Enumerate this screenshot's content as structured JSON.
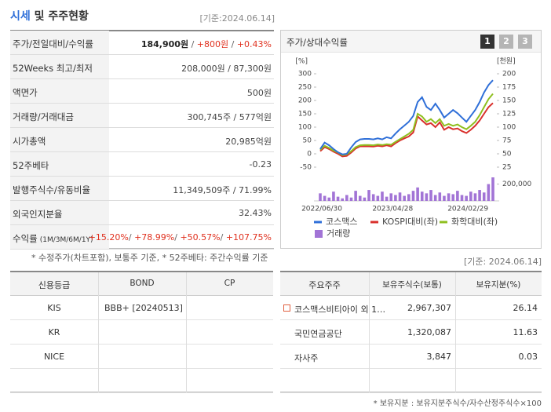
{
  "header": {
    "title_highlight": "시세",
    "title_rest": "및 주주현황",
    "date": "[기준:2024.06.14]"
  },
  "quote_table": {
    "rows": [
      {
        "label": "주가/전일대비/수익률",
        "value": [
          {
            "text": "184,900원",
            "bold": true
          },
          {
            "text": " / "
          },
          {
            "text": "+800원",
            "color": "#e0301e"
          },
          {
            "text": " / "
          },
          {
            "text": "+0.43%",
            "color": "#e0301e"
          }
        ]
      },
      {
        "label": "52Weeks 최고/최저",
        "value": [
          {
            "text": "208,000원 / 87,300원"
          }
        ]
      },
      {
        "label": "액면가",
        "value": [
          {
            "text": "500원"
          }
        ]
      },
      {
        "label": "거래량/거래대금",
        "value": [
          {
            "text": "300,745주 / 577억원"
          }
        ]
      },
      {
        "label": "시가총액",
        "value": [
          {
            "text": "20,985억원"
          }
        ]
      },
      {
        "label": "52주베타",
        "value": [
          {
            "text": "-0.23"
          }
        ]
      },
      {
        "label": "발행주식수/유동비율",
        "value": [
          {
            "text": "11,349,509주 / 71.99%"
          }
        ]
      },
      {
        "label": "외국인지분율",
        "value": [
          {
            "text": "32.43%"
          }
        ]
      },
      {
        "label": "수익률",
        "label_sub": "(1M/3M/6M/1Y)",
        "value": [
          {
            "text": "+15.20%",
            "color": "#e0301e"
          },
          {
            "text": "/ "
          },
          {
            "text": "+78.99%",
            "color": "#e0301e"
          },
          {
            "text": "/ "
          },
          {
            "text": "+50.57%",
            "color": "#e0301e"
          },
          {
            "text": "/ "
          },
          {
            "text": "+107.75%",
            "color": "#e0301e"
          }
        ]
      }
    ]
  },
  "quote_note": "* 수정주가(차트포함), 보통주 기준, * 52주베타: 주간수익률 기준",
  "chart_panel": {
    "title": "주가/상대수익률",
    "buttons": [
      "1",
      "2",
      "3"
    ],
    "chart_data": {
      "type": "line",
      "ylabel": "[%]",
      "y2label": "[천원]",
      "categories": [
        "2022/06/30",
        null,
        null,
        null,
        null,
        null,
        null,
        null,
        null,
        null,
        null,
        null,
        null,
        null,
        null,
        null,
        "2023/04/28",
        null,
        null,
        null,
        null,
        null,
        null,
        null,
        null,
        null,
        null,
        null,
        null,
        null,
        null,
        null,
        null,
        "2024/02/29",
        null,
        null,
        null,
        null,
        null,
        null
      ],
      "ylim": [
        -50,
        300
      ],
      "yticks": [
        -50,
        0,
        50,
        100,
        150,
        200,
        250,
        300
      ],
      "y2lim": [
        25,
        200
      ],
      "y2ticks": [
        25,
        50,
        75,
        100,
        125,
        150,
        175,
        200
      ],
      "volume_lim": [
        0,
        280000
      ],
      "volume_ticks": [
        {
          "value": 200000,
          "label": "200,000"
        }
      ],
      "series": [
        {
          "name": "코스맥스",
          "color": "#2f6fd8",
          "axis": "y2",
          "values": [
            59,
            71,
            66,
            59,
            53,
            49,
            50,
            62,
            72,
            77,
            78,
            78,
            77,
            79,
            77,
            81,
            79,
            88,
            96,
            103,
            110,
            121,
            147,
            156,
            138,
            132,
            144,
            132,
            118,
            125,
            132,
            126,
            118,
            110,
            121,
            132,
            147,
            165,
            179,
            188
          ]
        },
        {
          "name": "KOSPI대비(좌)",
          "color": "#d9302c",
          "values": [
            10,
            25,
            18,
            8,
            0,
            -10,
            -8,
            5,
            20,
            28,
            28,
            28,
            27,
            30,
            28,
            32,
            28,
            40,
            50,
            58,
            65,
            80,
            140,
            125,
            110,
            115,
            100,
            118,
            90,
            100,
            92,
            95,
            85,
            78,
            90,
            105,
            125,
            150,
            175,
            190
          ]
        },
        {
          "name": "화학대비(좌)",
          "color": "#8fbf1f",
          "values": [
            15,
            30,
            22,
            12,
            5,
            -5,
            -2,
            10,
            25,
            32,
            33,
            33,
            32,
            35,
            33,
            36,
            34,
            45,
            55,
            65,
            75,
            90,
            150,
            140,
            120,
            130,
            115,
            130,
            105,
            112,
            105,
            110,
            100,
            92,
            105,
            120,
            145,
            175,
            205,
            225
          ]
        },
        {
          "name": "거래량",
          "color": "#a274d6",
          "type": "bar",
          "values": [
            90000,
            60000,
            40000,
            110000,
            50000,
            30000,
            70000,
            40000,
            120000,
            60000,
            40000,
            130000,
            80000,
            60000,
            110000,
            50000,
            90000,
            70000,
            100000,
            60000,
            80000,
            120000,
            160000,
            110000,
            90000,
            130000,
            70000,
            100000,
            60000,
            90000,
            80000,
            120000,
            70000,
            60000,
            110000,
            90000,
            130000,
            100000,
            200000,
            280000
          ]
        }
      ]
    }
  },
  "chart_date": "[기준: 2024.06.14]",
  "credit_table": {
    "headers": [
      "신용등급",
      "BOND",
      "CP"
    ],
    "rows": [
      [
        "KIS",
        "BBB+ [20240513]",
        null
      ],
      [
        "KR",
        null,
        null
      ],
      [
        "NICE",
        null,
        null
      ],
      [
        null,
        null,
        null
      ]
    ]
  },
  "holder_table": {
    "headers": [
      "주요주주",
      "보유주식수(보통)",
      "보유지분(%)"
    ],
    "rows": [
      [
        "코스맥스비티아이 외 1…",
        "2,967,307",
        "26.14"
      ],
      [
        "국민연금공단",
        "1,320,087",
        "11.63"
      ],
      [
        "자사주",
        "3,847",
        "0.03"
      ],
      [
        null,
        null,
        null
      ]
    ]
  },
  "holder_note": "* 보유지분 : 보유지분주식수/자수산정주식수×100"
}
